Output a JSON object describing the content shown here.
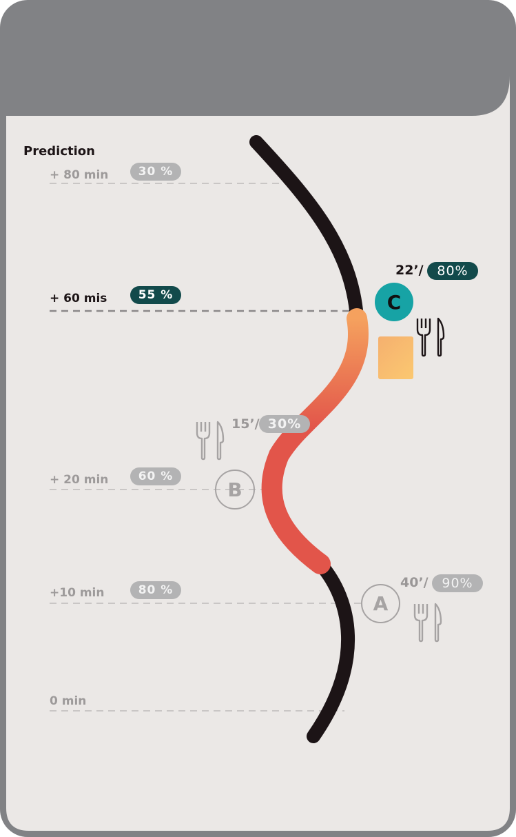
{
  "header": {
    "title": "Prediction"
  },
  "timeline": [
    {
      "label": "+ 80 min",
      "percent": "30 %",
      "active": false
    },
    {
      "label": "+ 60 mis",
      "percent": "55 %",
      "active": true
    },
    {
      "label": "+ 20 min",
      "percent": "60 %",
      "active": false
    },
    {
      "label": "+10 min",
      "percent": "80 %",
      "active": false
    },
    {
      "label": "0 min",
      "percent": "",
      "active": false
    }
  ],
  "stops": [
    {
      "id": "C",
      "time": "22’/",
      "occupancy": "80%",
      "active": true,
      "icon": "fork-knife-icon"
    },
    {
      "id": "B",
      "time": "15’/",
      "occupancy": "30%",
      "active": false,
      "icon": "fork-knife-icon"
    },
    {
      "id": "A",
      "time": "40’/",
      "occupancy": "90%",
      "active": false,
      "icon": "fork-knife-icon"
    }
  ],
  "colors": {
    "frame": "#818285",
    "panel": "#ebe8e6",
    "route": "#1c1416",
    "route_highlight_start": "#f5a15e",
    "route_highlight_end": "#e2554a",
    "accent_dark": "#124a4b",
    "accent_teal": "#17a3a5",
    "muted": "#b3b3b4"
  }
}
